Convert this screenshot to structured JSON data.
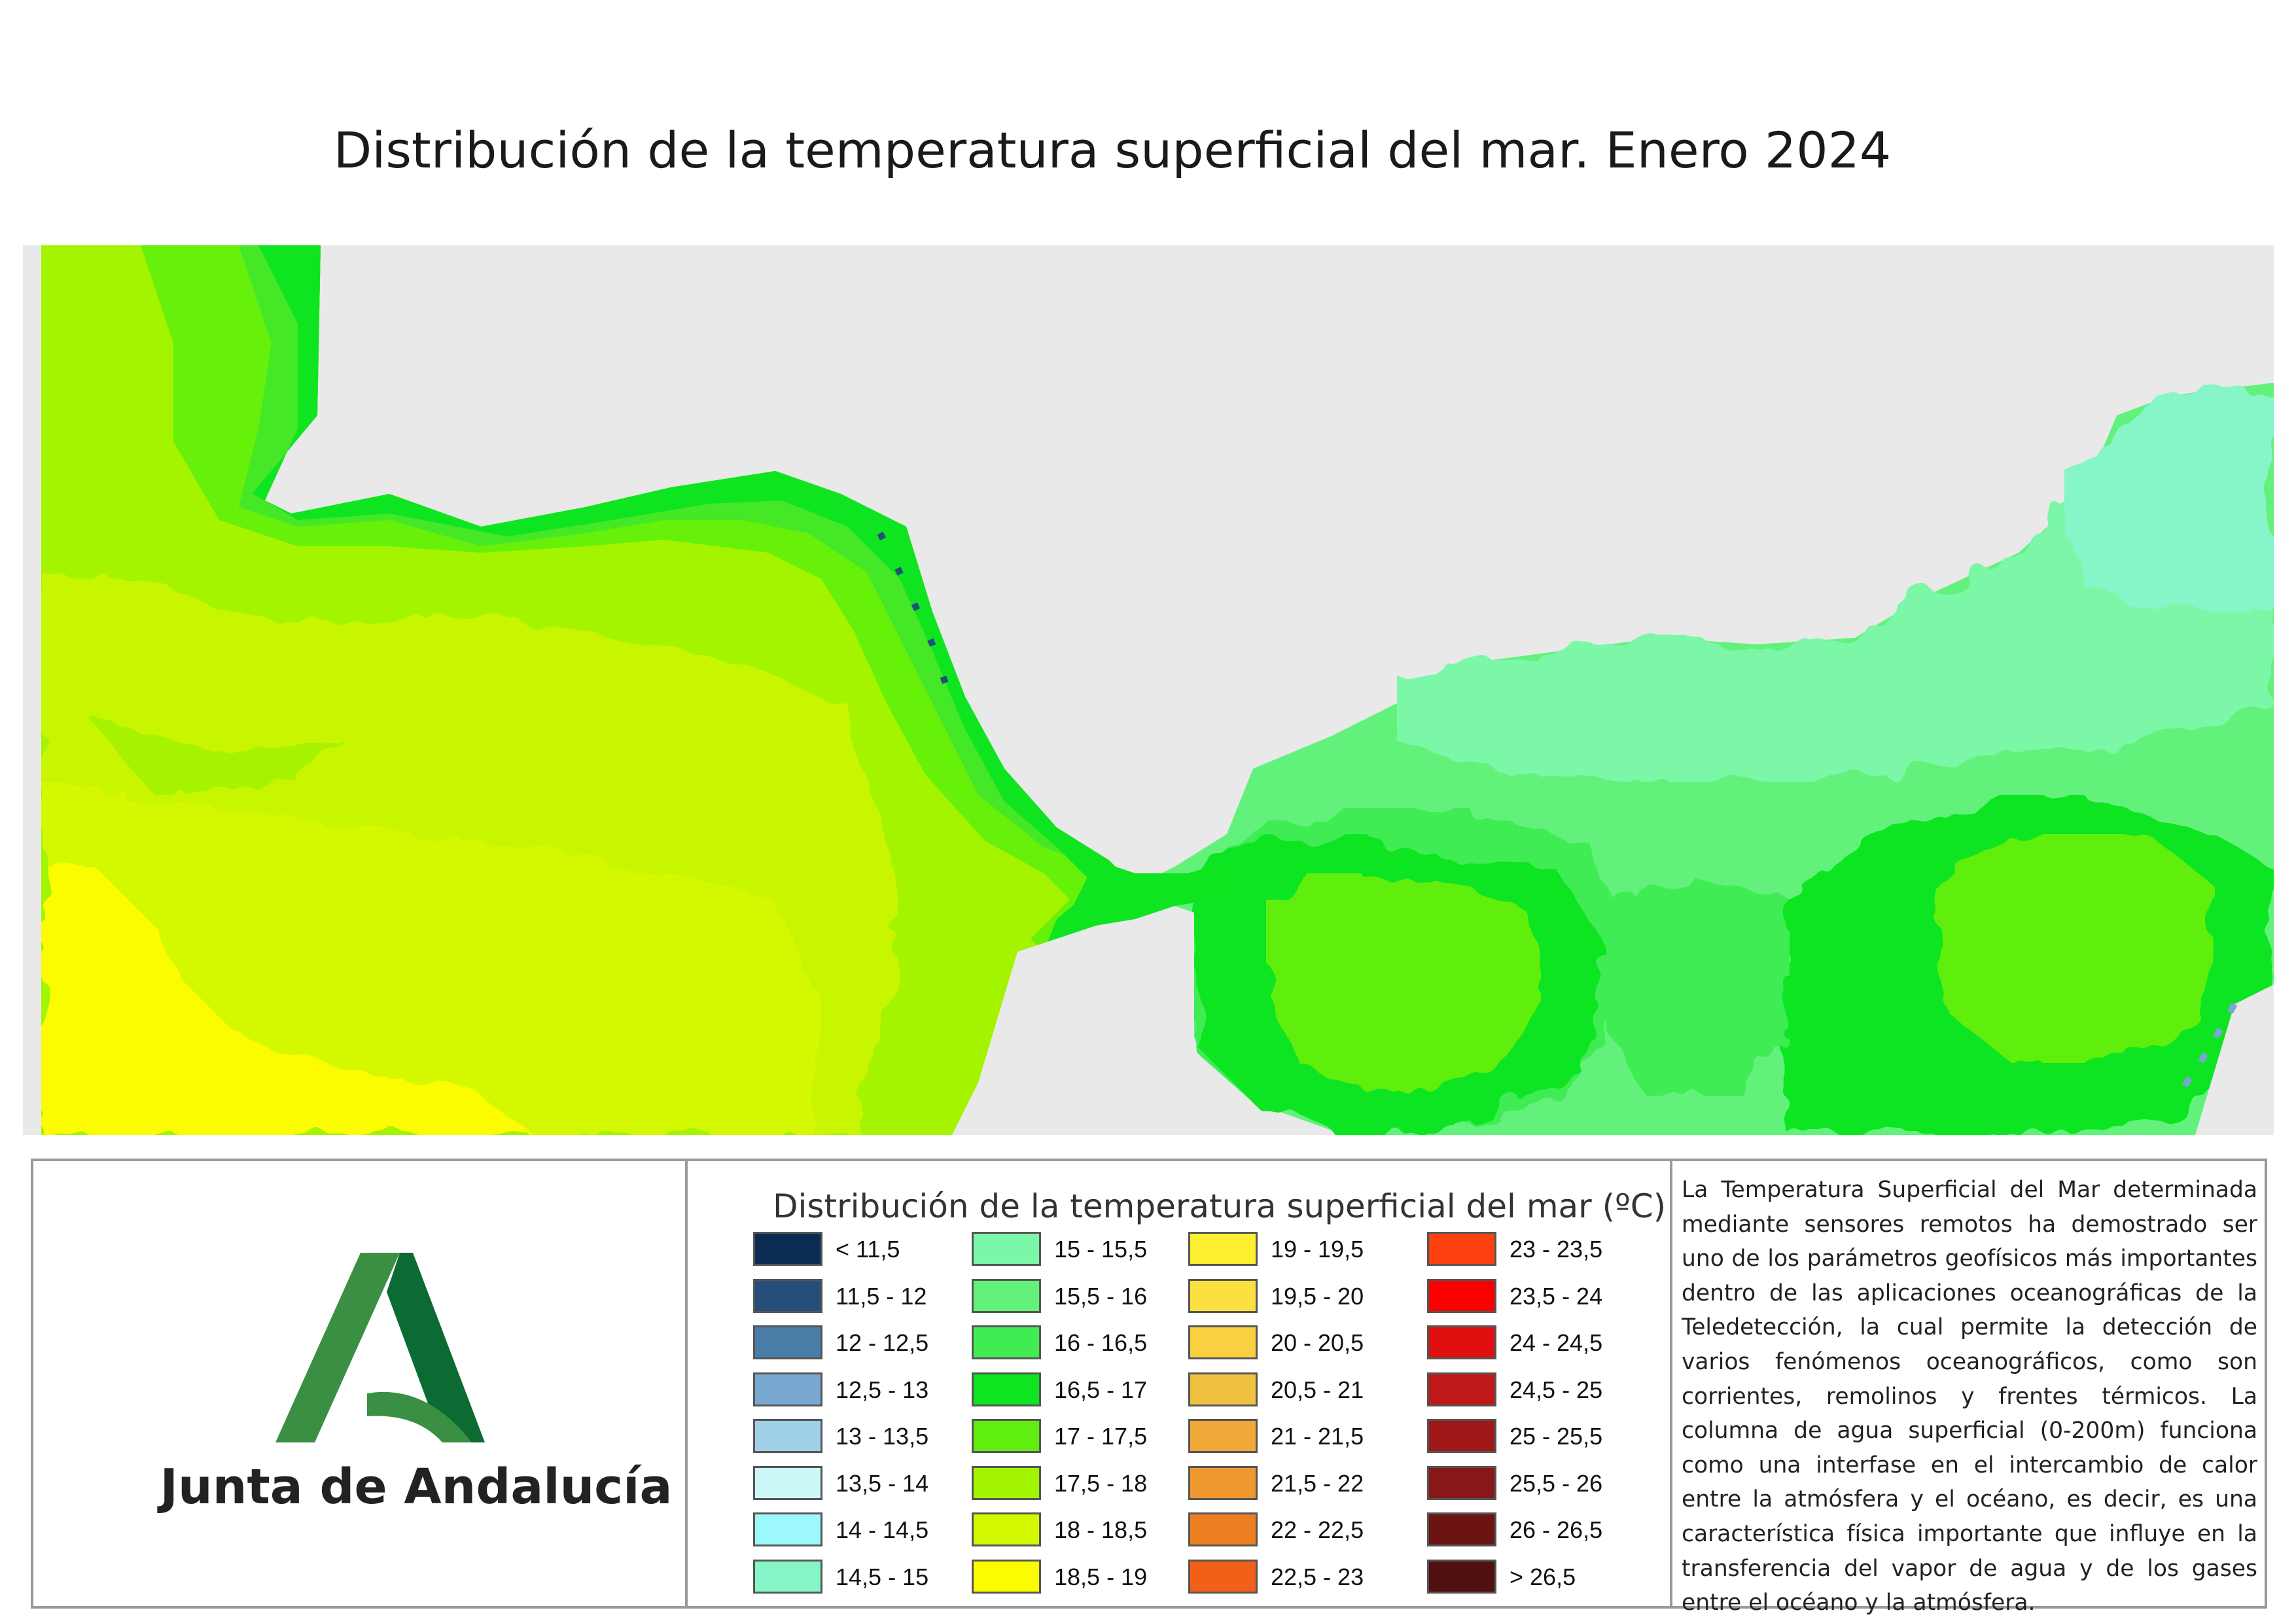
{
  "page_title": "Distribución de la temperatura superficial del mar. Enero 2024",
  "map": {
    "land_color": "#e9e9e9",
    "atlantic_base_color": "#9ff200",
    "mediterranean_base_color": "#55f06a"
  },
  "org": {
    "name": "Junta de Andalucía",
    "logo_colors": [
      "#3a8f43",
      "#0b6b32"
    ]
  },
  "legend": {
    "title": "Distribución de la temperatura superficial del mar  (ºC)",
    "items": [
      {
        "label": "< 11,5",
        "color": "#0b2c52"
      },
      {
        "label": "11,5 - 12",
        "color": "#234f79"
      },
      {
        "label": "12 - 12,5",
        "color": "#4a7ea8"
      },
      {
        "label": "12,5 - 13",
        "color": "#78a8d2"
      },
      {
        "label": "13 - 13,5",
        "color": "#9fd0e8"
      },
      {
        "label": "13,5 - 14",
        "color": "#cdf8f8"
      },
      {
        "label": "14 - 14,5",
        "color": "#9cf8fc"
      },
      {
        "label": "14,5 - 15",
        "color": "#86f5c8"
      },
      {
        "label": "15 - 15,5",
        "color": "#7cf7a8"
      },
      {
        "label": "15,5 - 16",
        "color": "#62f27c"
      },
      {
        "label": "16 - 16,5",
        "color": "#41ec52"
      },
      {
        "label": "16,5 - 17",
        "color": "#0ee420"
      },
      {
        "label": "17 - 17,5",
        "color": "#60ee10"
      },
      {
        "label": "17,5 - 18",
        "color": "#a2f400"
      },
      {
        "label": "18 - 18,5",
        "color": "#d4f800"
      },
      {
        "label": "18,5 - 19",
        "color": "#fcfc00"
      },
      {
        "label": "19 - 19,5",
        "color": "#fcf030"
      },
      {
        "label": "19,5 - 20",
        "color": "#fce040"
      },
      {
        "label": "20 - 20,5",
        "color": "#f8d040"
      },
      {
        "label": "20,5 - 21",
        "color": "#f0c040"
      },
      {
        "label": "21 - 21,5",
        "color": "#f0a838"
      },
      {
        "label": "21,5 - 22",
        "color": "#f09830"
      },
      {
        "label": "22 - 22,5",
        "color": "#ec8020"
      },
      {
        "label": "22,5 - 23",
        "color": "#f06018"
      },
      {
        "label": "23 - 23,5",
        "color": "#fc4010"
      },
      {
        "label": "23,5 - 24",
        "color": "#fc0000"
      },
      {
        "label": "24 - 24,5",
        "color": "#e01010"
      },
      {
        "label": "24,5 - 25",
        "color": "#c01818"
      },
      {
        "label": "25 - 25,5",
        "color": "#a01818"
      },
      {
        "label": "25,5 - 26",
        "color": "#881818"
      },
      {
        "label": "26 - 26,5",
        "color": "#6c1414"
      },
      {
        "label": "> 26,5",
        "color": "#501010"
      }
    ]
  },
  "description": "La Temperatura Superficial del Mar determinada mediante sensores remotos ha demostrado ser uno de los parámetros geofísicos más importantes dentro de las aplicaciones oceanográficas de la Teledetección, la cual permite la detección de varios fenómenos oceanográficos, como son corrientes, remolinos y frentes térmicos. La columna de agua superficial (0-200m) funciona como una interfase en el intercambio de calor entre la atmósfera y el océano, es decir, es una característica física importante que influye en la transferencia del vapor de agua y de los gases entre el océano y la atmósfera."
}
